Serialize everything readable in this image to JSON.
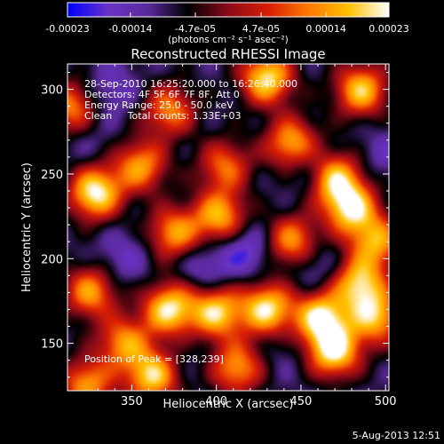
{
  "chart_data": {
    "type": "heatmap",
    "title": "Reconstructed RHESSI Image",
    "xlabel": "Heliocentric X (arcsec)",
    "ylabel": "Heliocentric Y (arcsec)",
    "xlim": [
      312,
      502
    ],
    "ylim": [
      122,
      315
    ],
    "x_ticks": [
      350,
      400,
      450,
      500
    ],
    "y_ticks": [
      150,
      200,
      250,
      300
    ],
    "colorbar": {
      "ticks": [
        "-0.00023",
        "-0.00014",
        "-4.7e-05",
        "4.7e-05",
        "0.00014",
        "0.00023"
      ],
      "values": [
        -0.00023,
        -0.00014,
        -4.7e-05,
        4.7e-05,
        0.00014,
        0.00023
      ],
      "range": [
        -0.00023,
        0.00023
      ],
      "units": "(photons cm⁻² s⁻¹ asec⁻²)",
      "colors": [
        "#0000ff",
        "#6a33c8",
        "#5a2a9a",
        "#000000",
        "#8b0a1a",
        "#d81e05",
        "#ff7a00",
        "#ffc000",
        "#ffffff"
      ]
    },
    "annotations": {
      "time_range": "28-Sep-2010 16:25:20.000 to 16:26:40.000",
      "detectors": "Detectors: 4F 5F 6F 7F 8F, Att 0",
      "energy": "Energy Range: 25.0 - 50.0 keV",
      "clean": "Clean     Total counts: 1.33E+03",
      "peak": "Position of Peak = [328,239]"
    },
    "blobs": [
      {
        "x": 328,
        "y": 239,
        "v": 0.00023
      },
      {
        "x": 430,
        "y": 307,
        "v": 0.00021
      },
      {
        "x": 445,
        "y": 268,
        "v": 0.00017
      },
      {
        "x": 486,
        "y": 300,
        "v": 0.00018
      },
      {
        "x": 372,
        "y": 288,
        "v": 0.00012
      },
      {
        "x": 338,
        "y": 300,
        "v": -0.00016
      },
      {
        "x": 313,
        "y": 290,
        "v": 0.00012
      },
      {
        "x": 455,
        "y": 255,
        "v": -0.00018
      },
      {
        "x": 470,
        "y": 248,
        "v": 0.00018
      },
      {
        "x": 480,
        "y": 230,
        "v": 0.0002
      },
      {
        "x": 355,
        "y": 255,
        "v": 0.00014
      },
      {
        "x": 402,
        "y": 225,
        "v": 0.00016
      },
      {
        "x": 375,
        "y": 215,
        "v": 0.00014
      },
      {
        "x": 418,
        "y": 205,
        "v": -0.0002
      },
      {
        "x": 393,
        "y": 195,
        "v": -0.00017
      },
      {
        "x": 445,
        "y": 210,
        "v": 0.00014
      },
      {
        "x": 458,
        "y": 195,
        "v": -0.00016
      },
      {
        "x": 485,
        "y": 185,
        "v": 0.00018
      },
      {
        "x": 345,
        "y": 200,
        "v": -0.00016
      },
      {
        "x": 325,
        "y": 180,
        "v": 0.00014
      },
      {
        "x": 372,
        "y": 170,
        "v": 0.00021
      },
      {
        "x": 400,
        "y": 168,
        "v": 0.00019
      },
      {
        "x": 430,
        "y": 170,
        "v": 0.00021
      },
      {
        "x": 462,
        "y": 165,
        "v": 0.00021
      },
      {
        "x": 495,
        "y": 165,
        "v": 0.00016
      },
      {
        "x": 345,
        "y": 150,
        "v": 0.00013
      },
      {
        "x": 362,
        "y": 130,
        "v": 0.00019
      },
      {
        "x": 470,
        "y": 145,
        "v": 0.00022
      },
      {
        "x": 412,
        "y": 135,
        "v": 0.00014
      },
      {
        "x": 323,
        "y": 125,
        "v": 0.00014
      },
      {
        "x": 500,
        "y": 262,
        "v": -0.00014
      },
      {
        "x": 325,
        "y": 268,
        "v": -0.00012
      },
      {
        "x": 405,
        "y": 255,
        "v": 0.0001
      },
      {
        "x": 440,
        "y": 145,
        "v": -0.00012
      },
      {
        "x": 495,
        "y": 210,
        "v": 0.00014
      },
      {
        "x": 385,
        "y": 140,
        "v": -0.00011
      }
    ],
    "background": -9e-05
  },
  "footer": {
    "date": "5-Aug-2013 12:51"
  }
}
